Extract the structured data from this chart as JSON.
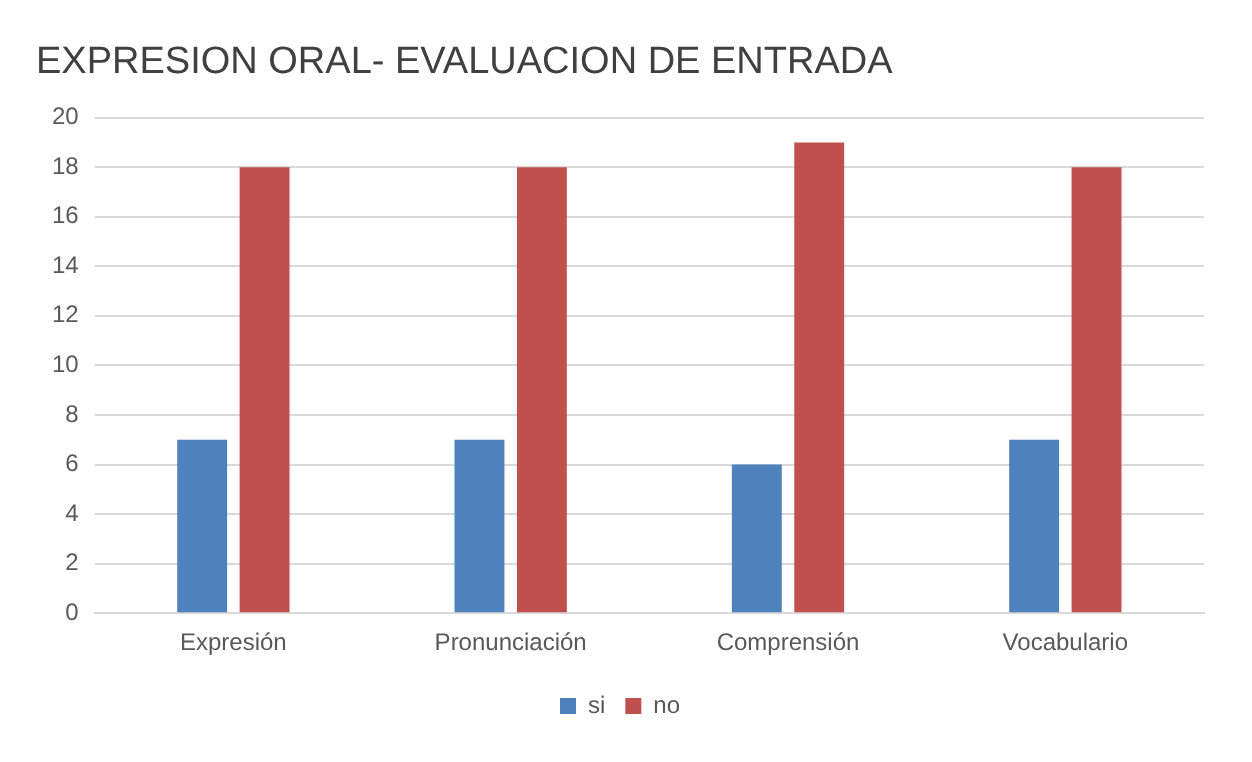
{
  "chart_data": {
    "type": "bar",
    "title": "EXPRESION ORAL- EVALUACION DE ENTRADA",
    "categories": [
      "Expresión",
      "Pronunciación",
      "Comprensión",
      "Vocabulario"
    ],
    "series": [
      {
        "name": "si",
        "color": "#4f81bd",
        "values": [
          7,
          7,
          6,
          7
        ]
      },
      {
        "name": "no",
        "color": "#c0504d",
        "values": [
          18,
          18,
          19,
          18
        ]
      }
    ],
    "ylim": [
      0,
      20
    ],
    "yticks": [
      0,
      2,
      4,
      6,
      8,
      10,
      12,
      14,
      16,
      18,
      20
    ],
    "grid": "y",
    "legend": "bottom"
  }
}
